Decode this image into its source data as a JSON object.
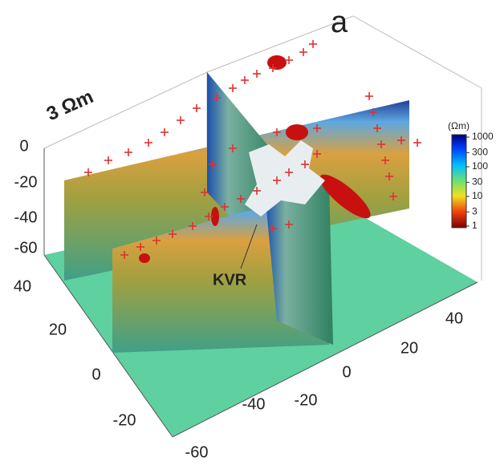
{
  "figure": {
    "panel_label": "a",
    "isosurface_label": "3 Ωm",
    "annotation": "KVR",
    "colorbar": {
      "title": "(Ωm)",
      "ticks": [
        1000,
        300,
        100,
        30,
        10,
        3,
        1
      ],
      "log_scale": true
    },
    "depth_ticks": [
      0,
      -20,
      -40,
      -60
    ],
    "left_axis_ticks": [
      40,
      20,
      0,
      -20
    ],
    "front_axis_ticks": [
      -60,
      -40,
      -20,
      0
    ],
    "right_axis_ticks": [
      20,
      40
    ]
  }
}
